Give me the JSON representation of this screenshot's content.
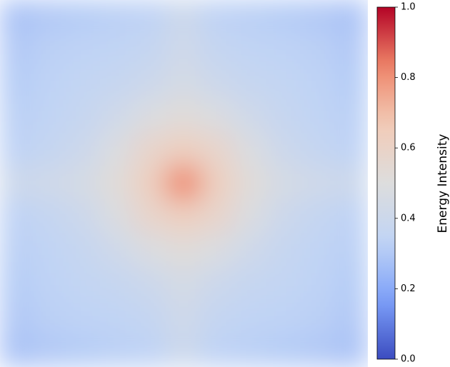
{
  "chart_data": {
    "type": "heatmap",
    "colormap": "coolwarm",
    "colorbar_label": "Energy Intensity",
    "zlim": [
      0,
      1
    ],
    "zticks": [
      {
        "value": 0,
        "label": "0.0"
      },
      0.2,
      0.4,
      0.6,
      0.8,
      {
        "value": 1,
        "label": "1.0"
      }
    ],
    "z": [
      [
        0.28,
        0.3,
        0.31,
        0.32,
        0.33,
        0.4,
        0.33,
        0.32,
        0.31,
        0.3,
        0.28
      ],
      [
        0.3,
        0.32,
        0.33,
        0.34,
        0.36,
        0.42,
        0.36,
        0.34,
        0.33,
        0.32,
        0.3
      ],
      [
        0.31,
        0.33,
        0.35,
        0.37,
        0.4,
        0.45,
        0.4,
        0.37,
        0.35,
        0.33,
        0.31
      ],
      [
        0.32,
        0.34,
        0.37,
        0.42,
        0.48,
        0.52,
        0.48,
        0.42,
        0.37,
        0.34,
        0.32
      ],
      [
        0.33,
        0.36,
        0.4,
        0.48,
        0.58,
        0.63,
        0.58,
        0.48,
        0.4,
        0.36,
        0.33
      ],
      [
        0.4,
        0.42,
        0.45,
        0.52,
        0.63,
        0.82,
        0.63,
        0.52,
        0.45,
        0.42,
        0.4
      ],
      [
        0.33,
        0.36,
        0.4,
        0.48,
        0.58,
        0.63,
        0.58,
        0.48,
        0.4,
        0.36,
        0.33
      ],
      [
        0.32,
        0.34,
        0.37,
        0.42,
        0.48,
        0.52,
        0.48,
        0.42,
        0.37,
        0.34,
        0.32
      ],
      [
        0.31,
        0.33,
        0.35,
        0.37,
        0.4,
        0.45,
        0.4,
        0.37,
        0.35,
        0.33,
        0.31
      ],
      [
        0.3,
        0.32,
        0.33,
        0.34,
        0.36,
        0.42,
        0.36,
        0.34,
        0.33,
        0.32,
        0.3
      ],
      [
        0.28,
        0.3,
        0.31,
        0.32,
        0.33,
        0.4,
        0.33,
        0.32,
        0.31,
        0.3,
        0.28
      ]
    ]
  }
}
